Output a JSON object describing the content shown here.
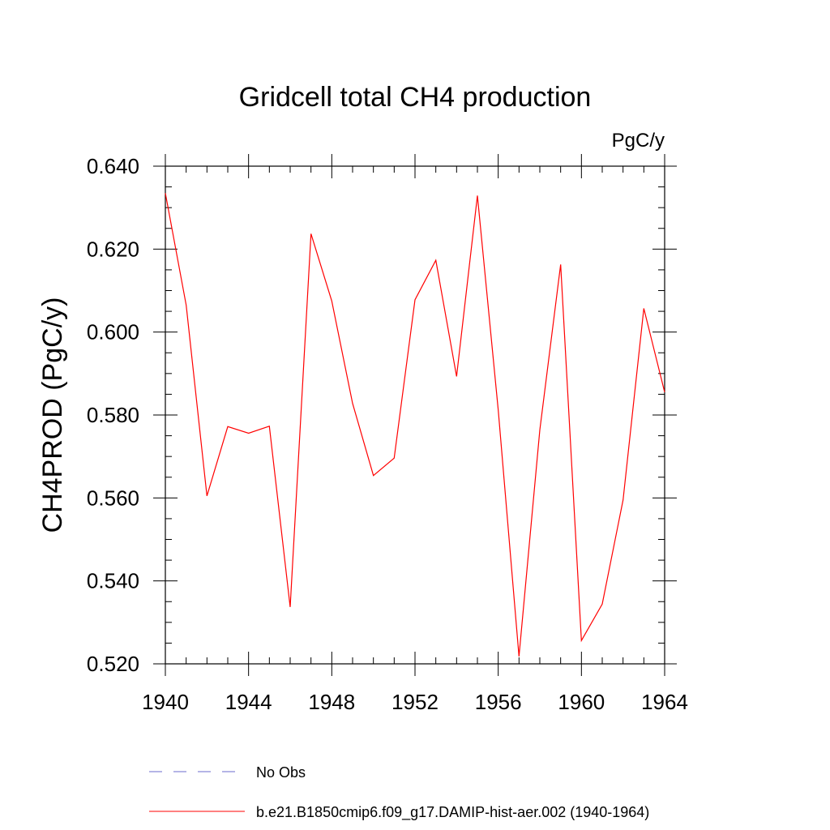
{
  "chart_data": {
    "type": "line",
    "title": "Gridcell total CH4 production",
    "units_label": "PgC/y",
    "ylabel": "CH4PROD  (PgC/y)",
    "xlabel": "",
    "xlim": [
      1940,
      1964
    ],
    "ylim": [
      0.52,
      0.64
    ],
    "x_ticks": [
      "1940",
      "1944",
      "1948",
      "1952",
      "1956",
      "1960",
      "1964"
    ],
    "y_ticks": [
      "0.520",
      "0.540",
      "0.560",
      "0.580",
      "0.600",
      "0.620",
      "0.640"
    ],
    "grid": false,
    "series": [
      {
        "name": "b.e21.B1850cmip6.f09_g17.DAMIP-hist-aer.002 (1940-1964)",
        "color": "#ff0000",
        "x": [
          1940,
          1941,
          1942,
          1943,
          1944,
          1945,
          1946,
          1947,
          1948,
          1949,
          1950,
          1951,
          1952,
          1953,
          1954,
          1955,
          1956,
          1957,
          1958,
          1959,
          1960,
          1961,
          1962,
          1963,
          1964
        ],
        "values": [
          0.6335,
          0.6065,
          0.5605,
          0.5772,
          0.5756,
          0.5773,
          0.5337,
          0.6237,
          0.6075,
          0.5828,
          0.5654,
          0.5696,
          0.6078,
          0.6173,
          0.5893,
          0.6329,
          0.5812,
          0.5218,
          0.5764,
          0.6163,
          0.5256,
          0.5344,
          0.5595,
          0.6057,
          0.5855
        ]
      }
    ],
    "legend": {
      "placement": "bottom",
      "entries": [
        {
          "label": "No Obs",
          "style": "dashed",
          "color": "#6b6bcc"
        },
        {
          "label": "b.e21.B1850cmip6.f09_g17.DAMIP-hist-aer.002 (1940-1964)",
          "style": "solid",
          "color": "#ff0000"
        }
      ]
    }
  }
}
